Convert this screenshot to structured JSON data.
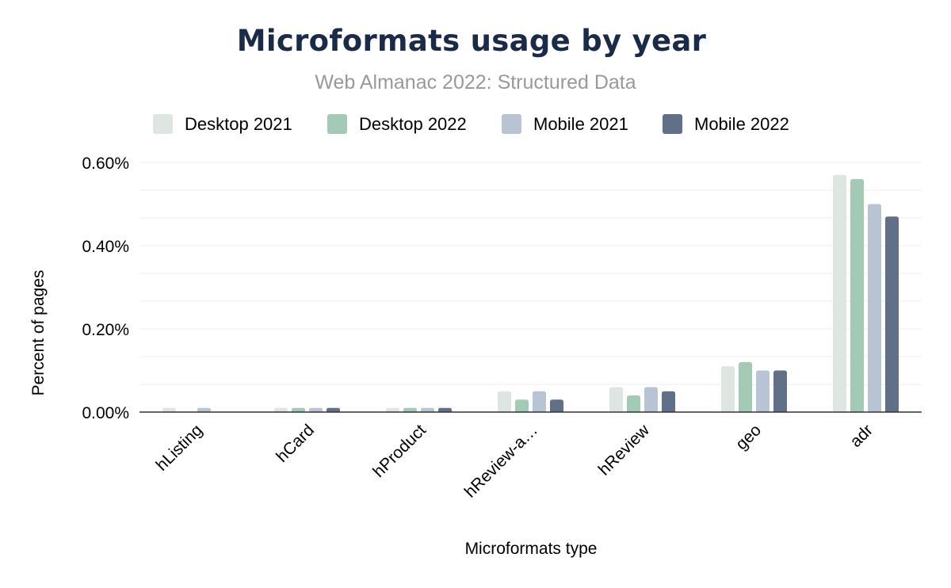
{
  "title": "Microformats usage by year",
  "subtitle": "Web Almanac 2022: Structured Data",
  "chart_data": {
    "type": "bar",
    "title": "Microformats usage by year",
    "subtitle": "Web Almanac 2022: Structured Data",
    "xlabel": "Microformats type",
    "ylabel": "Percent of pages",
    "ylim": [
      0,
      0.6
    ],
    "yticks": [
      0,
      0.2,
      0.4,
      0.6
    ],
    "ytick_labels": [
      "0.00%",
      "0.20%",
      "0.40%",
      "0.60%"
    ],
    "grid": true,
    "legend_position": "top",
    "categories": [
      "hListing",
      "hCard",
      "hProduct",
      "hReview-a…",
      "hReview",
      "geo",
      "adr"
    ],
    "series": [
      {
        "name": "Desktop 2021",
        "color": "#dde6e1",
        "values": [
          0.01,
          0.01,
          0.01,
          0.05,
          0.06,
          0.11,
          0.57
        ]
      },
      {
        "name": "Desktop 2022",
        "color": "#a3cab5",
        "values": [
          0.0,
          0.01,
          0.01,
          0.03,
          0.04,
          0.12,
          0.56
        ]
      },
      {
        "name": "Mobile 2021",
        "color": "#b8c3d4",
        "values": [
          0.01,
          0.01,
          0.01,
          0.05,
          0.06,
          0.1,
          0.5
        ]
      },
      {
        "name": "Mobile 2022",
        "color": "#617089",
        "values": [
          0.0,
          0.01,
          0.01,
          0.03,
          0.05,
          0.1,
          0.47
        ]
      }
    ]
  }
}
